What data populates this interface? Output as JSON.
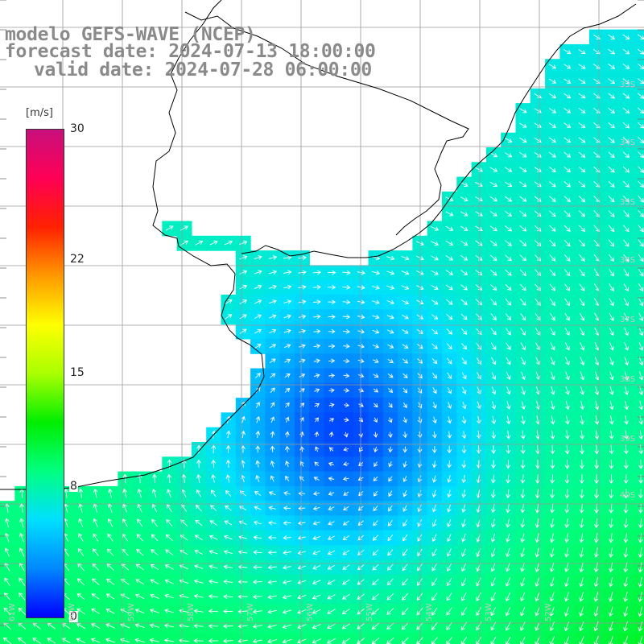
{
  "title": {
    "line1": "modelo GEFS-WAVE (NCEP)",
    "line2": "forecast date: 2024-07-13 18:00:00",
    "line3": "valid date: 2024-07-28 06:00:00"
  },
  "colorbar": {
    "unit": "[m/s]",
    "ticks": [
      {
        "value": 30,
        "label": "30"
      },
      {
        "value": 22,
        "label": "22"
      },
      {
        "value": 15,
        "label": "15"
      },
      {
        "value": 8,
        "label": "8"
      },
      {
        "value": 0,
        "label": "0"
      }
    ],
    "range": [
      0,
      30
    ],
    "colors": [
      "#0000ff",
      "#0088ff",
      "#00e0ff",
      "#00ff80",
      "#00ee00",
      "#aaff00",
      "#ffff00",
      "#ff9900",
      "#ff2200",
      "#ff0055",
      "#c8107c"
    ]
  },
  "lat_labels": [
    "33S",
    "34S",
    "35S",
    "36S",
    "37S",
    "38S",
    "39S",
    "40S"
  ],
  "lon_labels": [
    "61W",
    "60W",
    "59W",
    "58W",
    "57W",
    "56W",
    "55W",
    "54W",
    "53W",
    "52W"
  ],
  "colors": {
    "land": "#ffffff",
    "grid": "#9a9a9a",
    "coast": "#000000",
    "arrows": "#ffffff",
    "title": "#8a8a8a"
  }
}
